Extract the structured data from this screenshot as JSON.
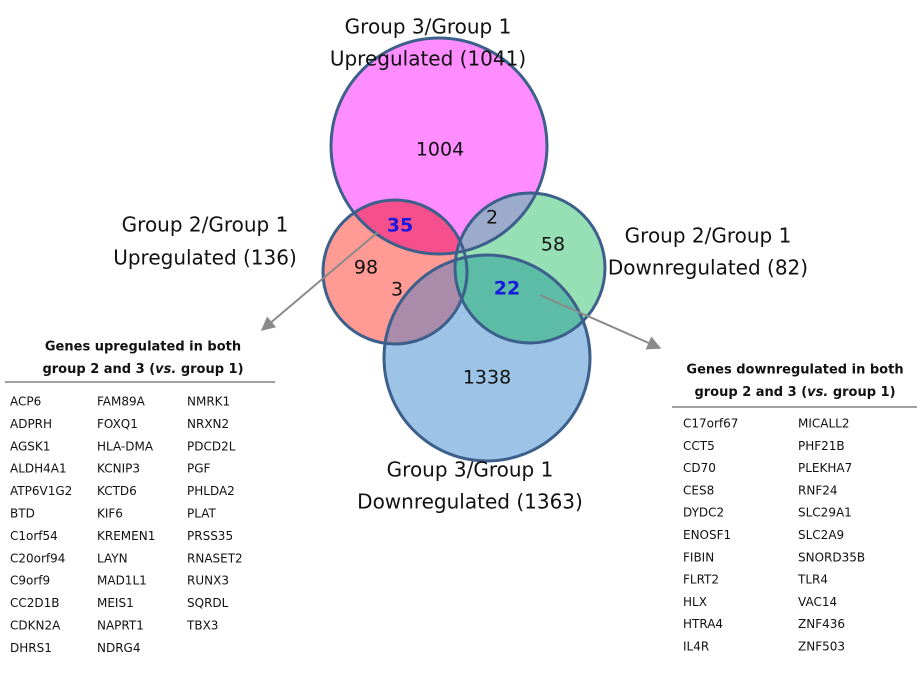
{
  "sets": [
    {
      "lines": [
        "Group 3/Group 1",
        "Upregulated (1041)"
      ]
    },
    {
      "lines": [
        "Group 2/Group 1",
        "Upregulated (136)"
      ]
    },
    {
      "lines": [
        "Group 2/Group 1",
        "Downregulated (82)"
      ]
    },
    {
      "lines": [
        "Group 3/Group 1",
        "Downregulated (1363)"
      ]
    }
  ],
  "regions": [
    "1004",
    "35",
    "2",
    "98",
    "3",
    "58",
    "22",
    "1338"
  ],
  "tables": [
    {
      "title": "Genes upregulated in both",
      "subtitle": [
        "group 2 and 3 (",
        "vs.",
        " group 1)"
      ],
      "columns": [
        [
          "ACP6",
          "ADPRH",
          "AGSK1",
          "ALDH4A1",
          "ATP6V1G2",
          "BTD",
          "C1orf54",
          "C20orf94",
          "C9orf9",
          "CC2D1B",
          "CDKN2A",
          "DHRS1"
        ],
        [
          "FAM89A",
          "FOXQ1",
          "HLA-DMA",
          "KCNIP3",
          "KCTD6",
          "KIF6",
          "KREMEN1",
          "LAYN",
          "MAD1L1",
          "MEIS1",
          "NAPRT1",
          "NDRG4"
        ],
        [
          "NMRK1",
          "NRXN2",
          "PDCD2L",
          "PGF",
          "PHLDA2",
          "PLAT",
          "PRSS35",
          "RNASET2",
          "RUNX3",
          "SQRDL",
          "TBX3"
        ]
      ]
    },
    {
      "title": "Genes downregulated in both",
      "subtitle": [
        "group 2 and 3 (",
        "vs.",
        " group 1)"
      ],
      "columns": [
        [
          "C17orf67",
          "CCT5",
          "CD70",
          "CES8",
          "DYDC2",
          "ENOSF1",
          "FIBIN",
          "FLRT2",
          "HLX",
          "HTRA4",
          "IL4R"
        ],
        [
          "MICALL2",
          "PHF21B",
          "PLEKHA7",
          "RNF24",
          "SLC29A1",
          "SLC2A9",
          "SNORD35B",
          "TLR4",
          "VAC14",
          "ZNF436",
          "ZNF503"
        ]
      ]
    }
  ]
}
